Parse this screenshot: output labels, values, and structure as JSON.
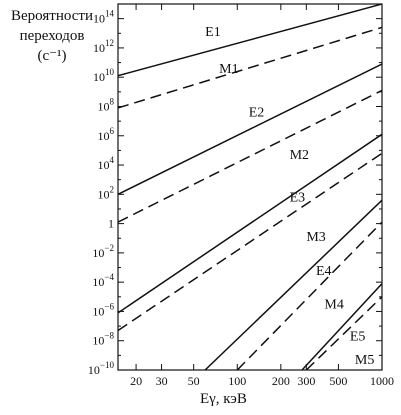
{
  "chart_data": {
    "type": "line",
    "ylabel_lines": [
      "Вероятности",
      "переходов",
      "(с⁻¹)"
    ],
    "xlabel": "Eγ, кэВ",
    "x_scale": "log",
    "y_scale": "log",
    "xlim": [
      15,
      1000
    ],
    "ylim_exponent": [
      -10,
      15
    ],
    "x_ticks": [
      {
        "value": 20,
        "label": "20"
      },
      {
        "value": 30,
        "label": "30"
      },
      {
        "value": 50,
        "label": "50"
      },
      {
        "value": 100,
        "label": "100"
      },
      {
        "value": 200,
        "label": "200"
      },
      {
        "value": 300,
        "label": "300"
      },
      {
        "value": 500,
        "label": "500"
      },
      {
        "value": 1000,
        "label": "1000"
      }
    ],
    "y_ticks": [
      {
        "exp": 14,
        "base": "10",
        "sup": "14"
      },
      {
        "exp": 12,
        "base": "10",
        "sup": "12"
      },
      {
        "exp": 10,
        "base": "10",
        "sup": "10"
      },
      {
        "exp": 8,
        "base": "10",
        "sup": "8"
      },
      {
        "exp": 6,
        "base": "10",
        "sup": "6"
      },
      {
        "exp": 4,
        "base": "10",
        "sup": "4"
      },
      {
        "exp": 2,
        "base": "10",
        "sup": "2"
      },
      {
        "exp": 0,
        "base": "1",
        "sup": ""
      },
      {
        "exp": -2,
        "base": "10",
        "sup": "−2"
      },
      {
        "exp": -4,
        "base": "10",
        "sup": "−4"
      },
      {
        "exp": -6,
        "base": "10",
        "sup": "−6"
      },
      {
        "exp": -8,
        "base": "10",
        "sup": "−8"
      },
      {
        "exp": -10,
        "base": "10",
        "sup": "−10"
      }
    ],
    "series": [
      {
        "name": "E1",
        "style": "solid",
        "points": [
          [
            15,
            10.1
          ],
          [
            1000,
            15.0
          ]
        ],
        "label_at": [
          60,
          12.8
        ]
      },
      {
        "name": "M1",
        "style": "dashed",
        "points": [
          [
            15,
            7.9
          ],
          [
            1000,
            13.4
          ]
        ],
        "label_at": [
          75,
          10.3
        ]
      },
      {
        "name": "E2",
        "style": "solid",
        "points": [
          [
            15,
            2.0
          ],
          [
            1000,
            10.9
          ]
        ],
        "label_at": [
          120,
          7.3
        ]
      },
      {
        "name": "M2",
        "style": "dashed",
        "points": [
          [
            15,
            0.1
          ],
          [
            1000,
            9.1
          ]
        ],
        "label_at": [
          230,
          4.4
        ]
      },
      {
        "name": "E3",
        "style": "solid",
        "points": [
          [
            15,
            -6.1
          ],
          [
            1000,
            6.1
          ]
        ],
        "label_at": [
          230,
          1.5
        ]
      },
      {
        "name": "M3",
        "style": "dashed",
        "points": [
          [
            15,
            -7.3
          ],
          [
            1000,
            4.8
          ]
        ],
        "label_at": [
          300,
          -1.2
        ]
      },
      {
        "name": "E4",
        "style": "solid",
        "points": [
          [
            60,
            -10.0
          ],
          [
            1000,
            1.6
          ]
        ],
        "label_at": [
          350,
          -3.5
        ]
      },
      {
        "name": "M4",
        "style": "dashed",
        "points": [
          [
            100,
            -10.0
          ],
          [
            1000,
            0.1
          ]
        ],
        "label_at": [
          400,
          -5.8
        ]
      },
      {
        "name": "E5",
        "style": "solid",
        "points": [
          [
            280,
            -10.0
          ],
          [
            1000,
            -4.1
          ]
        ],
        "label_at": [
          600,
          -8.0
        ]
      },
      {
        "name": "M5",
        "style": "dashed",
        "points": [
          [
            300,
            -10.0
          ],
          [
            1000,
            -5.0
          ]
        ],
        "label_at": [
          650,
          -9.6
        ]
      }
    ]
  }
}
